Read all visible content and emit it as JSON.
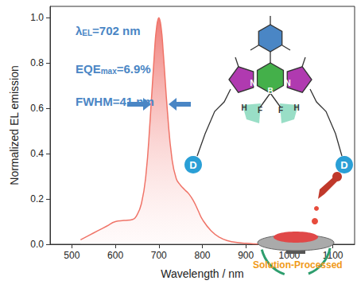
{
  "chart_data": {
    "type": "line",
    "x_label": "Wavelength / nm",
    "y_label": "Normalized EL emission",
    "x": [
      520,
      540,
      560,
      580,
      600,
      620,
      640,
      650,
      660,
      670,
      680,
      690,
      695,
      700,
      705,
      710,
      720,
      730,
      740,
      750,
      760,
      770,
      780,
      790,
      800,
      820,
      840,
      860,
      880,
      900,
      920,
      950,
      980,
      1000
    ],
    "values": [
      0.02,
      0.04,
      0.06,
      0.08,
      0.1,
      0.105,
      0.11,
      0.13,
      0.18,
      0.3,
      0.55,
      0.85,
      0.96,
      1.0,
      0.96,
      0.85,
      0.58,
      0.38,
      0.29,
      0.26,
      0.24,
      0.22,
      0.19,
      0.15,
      0.11,
      0.06,
      0.03,
      0.015,
      0.008,
      0.004,
      0.002,
      0.001,
      0,
      0
    ],
    "color": "#f07468",
    "xlim": [
      450,
      1150
    ],
    "xticks": [
      500,
      600,
      700,
      800,
      900,
      1000,
      1100
    ],
    "ylim": [
      0,
      1.05
    ],
    "yticks": [
      {
        "value": 0,
        "label": "0.0"
      },
      0.2,
      0.4,
      0.6,
      0.8,
      {
        "value": 1,
        "label": "1.0"
      }
    ],
    "grid": false,
    "annotations": [
      {
        "text": "λ",
        "subscript": "EL",
        "suffix": "=702 nm"
      },
      {
        "text": "EQE",
        "subscript": "max",
        "suffix": "=6.9%"
      },
      {
        "text": "FWHM=41 nm"
      },
      {
        "text": "Solution-Processed"
      }
    ],
    "structure": {
      "atoms": [
        "N",
        "N",
        "B",
        "F",
        "F",
        "H",
        "H"
      ],
      "donor_labels": [
        "D",
        "D"
      ]
    }
  }
}
